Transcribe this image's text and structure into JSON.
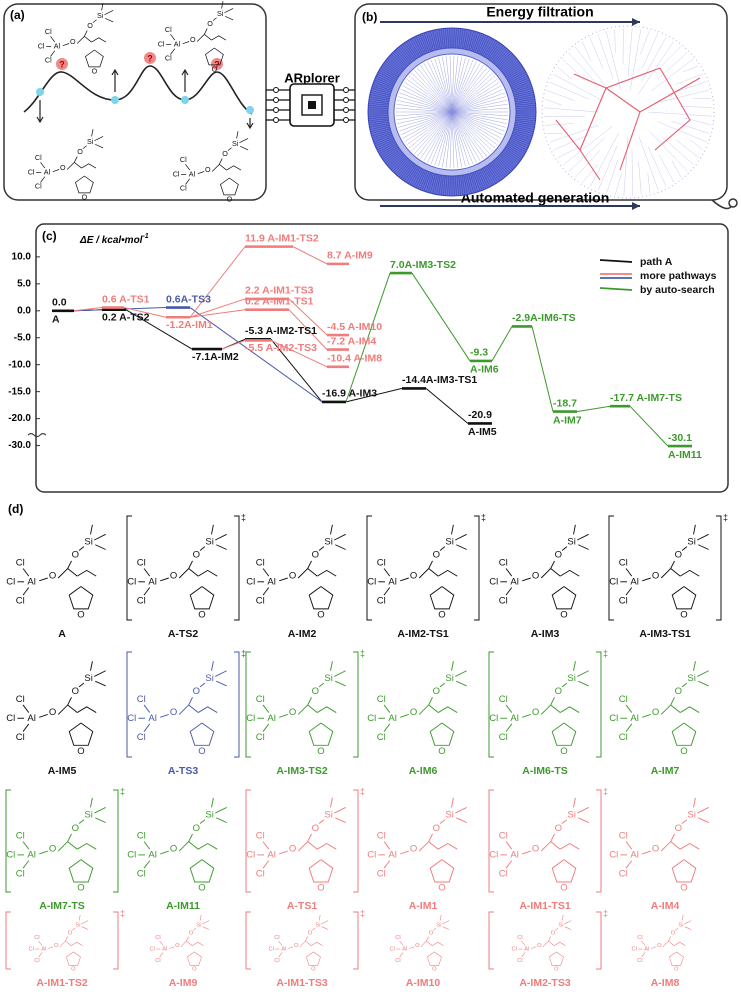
{
  "panel_a": {
    "tag": "(a)",
    "unknown_mark": "?"
  },
  "hub": {
    "label": "ARplorer"
  },
  "panel_b": {
    "tag": "(b)",
    "top_arrow": "Energy filtration",
    "bottom_arrow": "Automated generation"
  },
  "panel_c": {
    "tag": "(c)",
    "y_label": "ΔE / kcal•mol",
    "y_label_sup": "-1",
    "ylim": [
      -32.5,
      13.5
    ],
    "ybreak": [
      -22.5,
      -27.5
    ],
    "yticks": [
      {
        "value": 10,
        "label": "10.0"
      },
      {
        "value": 5,
        "label": "5.0"
      },
      {
        "value": 0,
        "label": "0.0"
      },
      {
        "value": -5,
        "label": "-5.0"
      },
      {
        "value": -10,
        "label": "-10.0"
      },
      {
        "value": -15,
        "label": "-15.0"
      },
      {
        "value": -20,
        "label": "-20.0"
      },
      {
        "value": -30,
        "label": "-30.0"
      }
    ],
    "legend": [
      {
        "label": "path A",
        "colors": [
          "#111111"
        ]
      },
      {
        "label": "more pathways",
        "colors": [
          "#f07c7c",
          "#4a5aa8"
        ]
      },
      {
        "label": "by auto-search",
        "colors": [
          "#3c9a2c"
        ]
      }
    ],
    "levels": [
      {
        "energy": 0.0,
        "label": "0.0",
        "label2": "A",
        "color": "#111111"
      },
      {
        "energy": 0.2,
        "label": "0.2 A-TS2",
        "color": "#111111"
      },
      {
        "energy": 0.6,
        "label": "0.6 A-TS1",
        "color": "#f07c7c"
      },
      {
        "energy": 0.6,
        "label": "0.6A-TS3",
        "color": "#4a5aa8"
      },
      {
        "energy": -1.2,
        "label": "-1.2A-IM1",
        "color": "#f07c7c"
      },
      {
        "energy": -7.1,
        "label": "-7.1A-IM2",
        "color": "#111111"
      },
      {
        "energy": 11.9,
        "label": "11.9 A-IM1-TS2",
        "color": "#f07c7c"
      },
      {
        "energy": 2.2,
        "label": "2.2 A-IM1-TS3",
        "color": "#f07c7c"
      },
      {
        "energy": 0.2,
        "label": "0.2 A-IM1-TS1",
        "color": "#f07c7c"
      },
      {
        "energy": -5.3,
        "label": "-5.3 A-IM2-TS1",
        "color": "#111111"
      },
      {
        "energy": -5.5,
        "label": "-5.5 A-IM2-TS3",
        "color": "#f07c7c"
      },
      {
        "energy": 8.7,
        "label": "8.7 A-IM9",
        "color": "#f07c7c"
      },
      {
        "energy": -4.5,
        "label": "-4.5 A-IM10",
        "color": "#f07c7c"
      },
      {
        "energy": -7.2,
        "label": "-7.2 A-IM4",
        "color": "#f07c7c"
      },
      {
        "energy": -10.4,
        "label": "-10.4 A-IM8",
        "color": "#f07c7c"
      },
      {
        "energy": -16.9,
        "label": "-16.9 A-IM3",
        "color": "#111111"
      },
      {
        "energy": 7.0,
        "label": "7.0A-IM3-TS2",
        "color": "#3c9a2c"
      },
      {
        "energy": -14.4,
        "label": "-14.4A-IM3-TS1",
        "color": "#111111"
      },
      {
        "energy": -20.9,
        "label": "-20.9",
        "label2": "A-IM5",
        "color": "#111111"
      },
      {
        "energy": -9.3,
        "label": "-9.3",
        "label2": "A-IM6",
        "color": "#3c9a2c"
      },
      {
        "energy": -2.9,
        "label": "-2.9A-IM6-TS",
        "color": "#3c9a2c"
      },
      {
        "energy": -18.7,
        "label": "-18.7",
        "label2": "A-IM7",
        "color": "#3c9a2c"
      },
      {
        "energy": -17.7,
        "label": "-17.7 A-IM7-TS",
        "color": "#3c9a2c"
      },
      {
        "energy": -30.1,
        "label": "-30.1",
        "label2": "A-IM11",
        "color": "#3c9a2c"
      }
    ]
  },
  "panel_d": {
    "tag": "(d)",
    "ts_mark": "‡",
    "atom_symbols": [
      "Cl",
      "Al",
      "O",
      "Si"
    ],
    "rows": [
      [
        {
          "label": "A",
          "color": "#111111",
          "ts": false
        },
        {
          "label": "A-TS2",
          "color": "#111111",
          "ts": true
        },
        {
          "label": "A-IM2",
          "color": "#111111",
          "ts": false
        },
        {
          "label": "A-IM2-TS1",
          "color": "#111111",
          "ts": true
        },
        {
          "label": "A-IM3",
          "color": "#111111",
          "ts": false
        },
        {
          "label": "A-IM3-TS1",
          "color": "#111111",
          "ts": true
        }
      ],
      [
        {
          "label": "A-IM5",
          "color": "#111111",
          "ts": false
        },
        {
          "label": "A-TS3",
          "color": "#4a5aa8",
          "ts": true
        },
        {
          "label": "A-IM3-TS2",
          "color": "#3c9a2c",
          "ts": true
        },
        {
          "label": "A-IM6",
          "color": "#3c9a2c",
          "ts": false
        },
        {
          "label": "A-IM6-TS",
          "color": "#3c9a2c",
          "ts": true
        },
        {
          "label": "A-IM7",
          "color": "#3c9a2c",
          "ts": false
        }
      ],
      [
        {
          "label": "A-IM7-TS",
          "color": "#3c9a2c",
          "ts": true
        },
        {
          "label": "A-IM11",
          "color": "#3c9a2c",
          "ts": false
        },
        {
          "label": "A-TS1",
          "color": "#f07c7c",
          "ts": true
        },
        {
          "label": "A-IM1",
          "color": "#f07c7c",
          "ts": false
        },
        {
          "label": "A-IM1-TS1",
          "color": "#f07c7c",
          "ts": true
        },
        {
          "label": "A-IM4",
          "color": "#f07c7c",
          "ts": false
        }
      ],
      [
        {
          "label": "A-IM1-TS2",
          "color": "#f07c7c",
          "ts": true
        },
        {
          "label": "A-IM9",
          "color": "#f07c7c",
          "ts": false
        },
        {
          "label": "A-IM1-TS3",
          "color": "#f07c7c",
          "ts": true
        },
        {
          "label": "A-IM10",
          "color": "#f07c7c",
          "ts": false
        },
        {
          "label": "A-IM2-TS3",
          "color": "#f07c7c",
          "ts": true
        },
        {
          "label": "A-IM8",
          "color": "#f07c7c",
          "ts": false
        }
      ]
    ]
  }
}
